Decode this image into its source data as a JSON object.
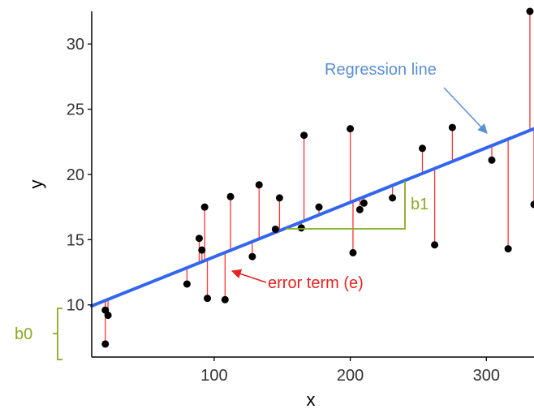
{
  "chart_data": {
    "type": "scatter",
    "xlabel": "x",
    "ylabel": "y",
    "xlim": [
      10,
      335
    ],
    "ylim": [
      6,
      32.5
    ],
    "x_ticks": [
      100,
      200,
      300
    ],
    "y_ticks": [
      10,
      15,
      20,
      25,
      30
    ],
    "grid": false,
    "points": [
      {
        "x": 20,
        "y": 7.0
      },
      {
        "x": 20,
        "y": 9.6
      },
      {
        "x": 22,
        "y": 9.2
      },
      {
        "x": 80,
        "y": 11.6
      },
      {
        "x": 89,
        "y": 15.1
      },
      {
        "x": 91,
        "y": 14.2
      },
      {
        "x": 93,
        "y": 17.5
      },
      {
        "x": 95,
        "y": 10.5
      },
      {
        "x": 108,
        "y": 10.4
      },
      {
        "x": 112,
        "y": 18.3
      },
      {
        "x": 128,
        "y": 13.7
      },
      {
        "x": 133,
        "y": 19.2
      },
      {
        "x": 145,
        "y": 15.8
      },
      {
        "x": 148,
        "y": 18.2
      },
      {
        "x": 164,
        "y": 15.9
      },
      {
        "x": 166,
        "y": 23.0
      },
      {
        "x": 177,
        "y": 17.5
      },
      {
        "x": 200,
        "y": 23.5
      },
      {
        "x": 202,
        "y": 14.0
      },
      {
        "x": 207,
        "y": 17.3
      },
      {
        "x": 210,
        "y": 17.8
      },
      {
        "x": 231,
        "y": 18.2
      },
      {
        "x": 253,
        "y": 22.0
      },
      {
        "x": 262,
        "y": 14.6
      },
      {
        "x": 275,
        "y": 23.6
      },
      {
        "x": 304,
        "y": 21.1
      },
      {
        "x": 316,
        "y": 14.3
      },
      {
        "x": 332,
        "y": 32.5
      },
      {
        "x": 335,
        "y": 17.7
      }
    ],
    "regression_line": {
      "intercept": 9.5,
      "slope": 0.0418
    },
    "colors": {
      "points": "#000000",
      "residuals": "#ff3333",
      "regression": "#3366ee",
      "regression_annotation": "#5b8fd6",
      "coefficient_annotation": "#88aa22",
      "error_annotation": "#e52222"
    }
  },
  "annotations": {
    "regression_label": "Regression line",
    "error_label": "error term (e)",
    "slope_label": "b1",
    "intercept_label": "b0"
  }
}
